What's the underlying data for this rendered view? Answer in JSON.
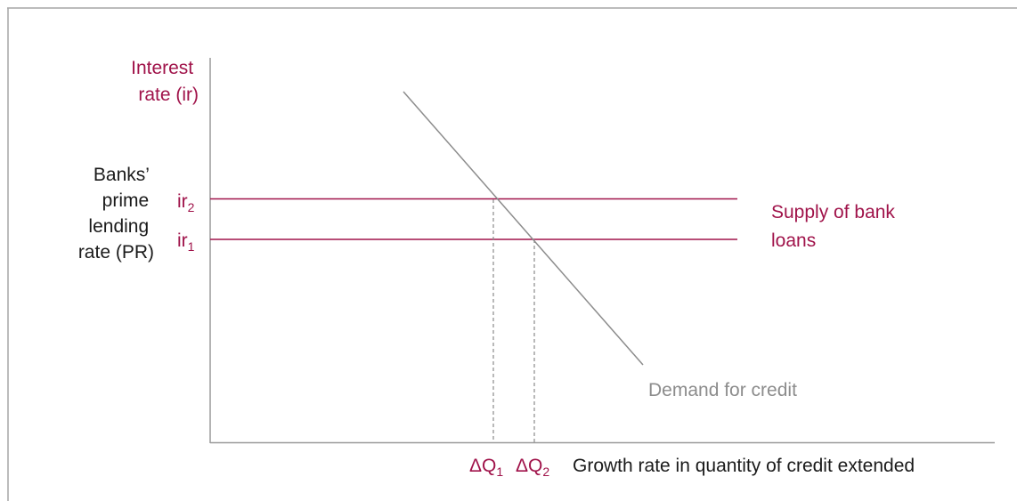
{
  "axes": {
    "y_label_lines": [
      "Interest",
      "rate (ir)"
    ],
    "x_label": "Growth rate in quantity of credit extended"
  },
  "side_label_lines": [
    "Banks’",
    "prime",
    "lending",
    "rate (PR)"
  ],
  "rates": {
    "ir2": {
      "base": "ir",
      "sub": "2"
    },
    "ir1": {
      "base": "ir",
      "sub": "1"
    }
  },
  "quantities": {
    "q1": {
      "base": "ΔQ",
      "sub": "1"
    },
    "q2": {
      "base": "ΔQ",
      "sub": "2"
    }
  },
  "curves": {
    "supply_label_lines": [
      "Supply of bank",
      "loans"
    ],
    "demand_label": "Demand for credit"
  },
  "colors": {
    "accent": "#a0134a",
    "axis": "#9a9a9a",
    "demand": "#8c8c8c",
    "text": "#1a1a1a",
    "border": "#a6a6a6"
  }
}
